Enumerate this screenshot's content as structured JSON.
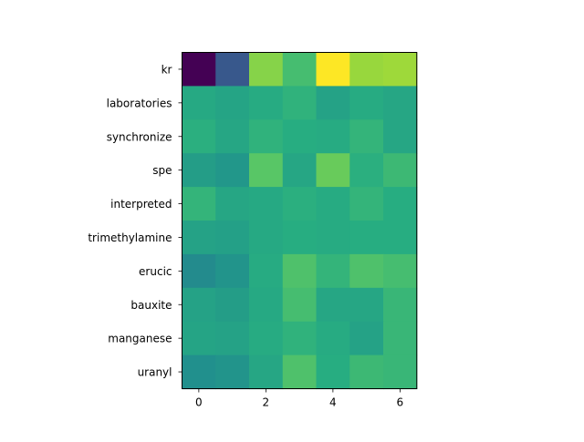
{
  "chart_data": {
    "type": "heatmap",
    "title": "",
    "xlabel": "",
    "ylabel": "",
    "columns": [
      0,
      1,
      2,
      3,
      4,
      5,
      6
    ],
    "x_ticks": [
      0,
      2,
      4,
      6
    ],
    "rows": [
      "kr",
      "laboratories",
      "synchronize",
      "spe",
      "interpreted",
      "trimethylamine",
      "erucic",
      "bauxite",
      "manganese",
      "uranyl"
    ],
    "values": [
      [
        0.0,
        0.28,
        0.82,
        0.7,
        1.0,
        0.85,
        0.86
      ],
      [
        0.61,
        0.59,
        0.62,
        0.65,
        0.58,
        0.62,
        0.6
      ],
      [
        0.64,
        0.6,
        0.65,
        0.63,
        0.62,
        0.66,
        0.6
      ],
      [
        0.56,
        0.53,
        0.74,
        0.6,
        0.77,
        0.64,
        0.68
      ],
      [
        0.66,
        0.6,
        0.61,
        0.64,
        0.62,
        0.66,
        0.63
      ],
      [
        0.58,
        0.57,
        0.61,
        0.63,
        0.62,
        0.63,
        0.63
      ],
      [
        0.48,
        0.52,
        0.62,
        0.72,
        0.66,
        0.72,
        0.7
      ],
      [
        0.58,
        0.56,
        0.61,
        0.7,
        0.6,
        0.6,
        0.67
      ],
      [
        0.59,
        0.58,
        0.62,
        0.65,
        0.62,
        0.58,
        0.67
      ],
      [
        0.5,
        0.52,
        0.6,
        0.72,
        0.63,
        0.68,
        0.67
      ]
    ],
    "colormap": "viridis",
    "vmin": 0,
    "vmax": 1
  }
}
